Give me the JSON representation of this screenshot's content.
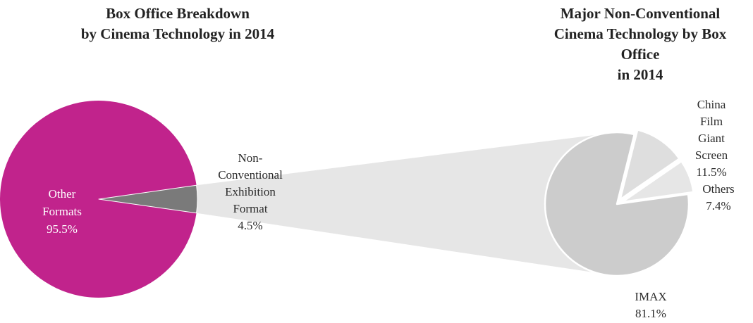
{
  "chart_data": [
    {
      "type": "pie",
      "title_lines": [
        "Box Office Breakdown",
        "by Cinema Technology in 2014"
      ],
      "slices": [
        {
          "label_lines": [
            "Other",
            "Formats",
            "95.5%"
          ],
          "value": 95.5,
          "color": "#c1238c"
        },
        {
          "label_lines": [
            "Non-",
            "Conventional",
            "Exhibition",
            "Format",
            "4.5%"
          ],
          "value": 4.5,
          "color": "#7a7a7a"
        }
      ]
    },
    {
      "type": "pie",
      "title_lines": [
        "Major Non-Conventional",
        "Cinema Technology by Box",
        "Office",
        "in 2014"
      ],
      "slices": [
        {
          "label_lines": [
            "IMAX",
            "81.1%"
          ],
          "value": 81.1,
          "color": "#cccccc"
        },
        {
          "label_lines": [
            "China",
            "Film",
            "Giant",
            "Screen",
            "11.5%"
          ],
          "value": 11.5,
          "color": "#dedede"
        },
        {
          "label_lines": [
            "Others",
            "7.4%"
          ],
          "value": 7.4,
          "color": "#e6e6e6"
        }
      ]
    }
  ],
  "colors": {
    "connector": "#e6e6e6",
    "separator": "#ffffff"
  }
}
